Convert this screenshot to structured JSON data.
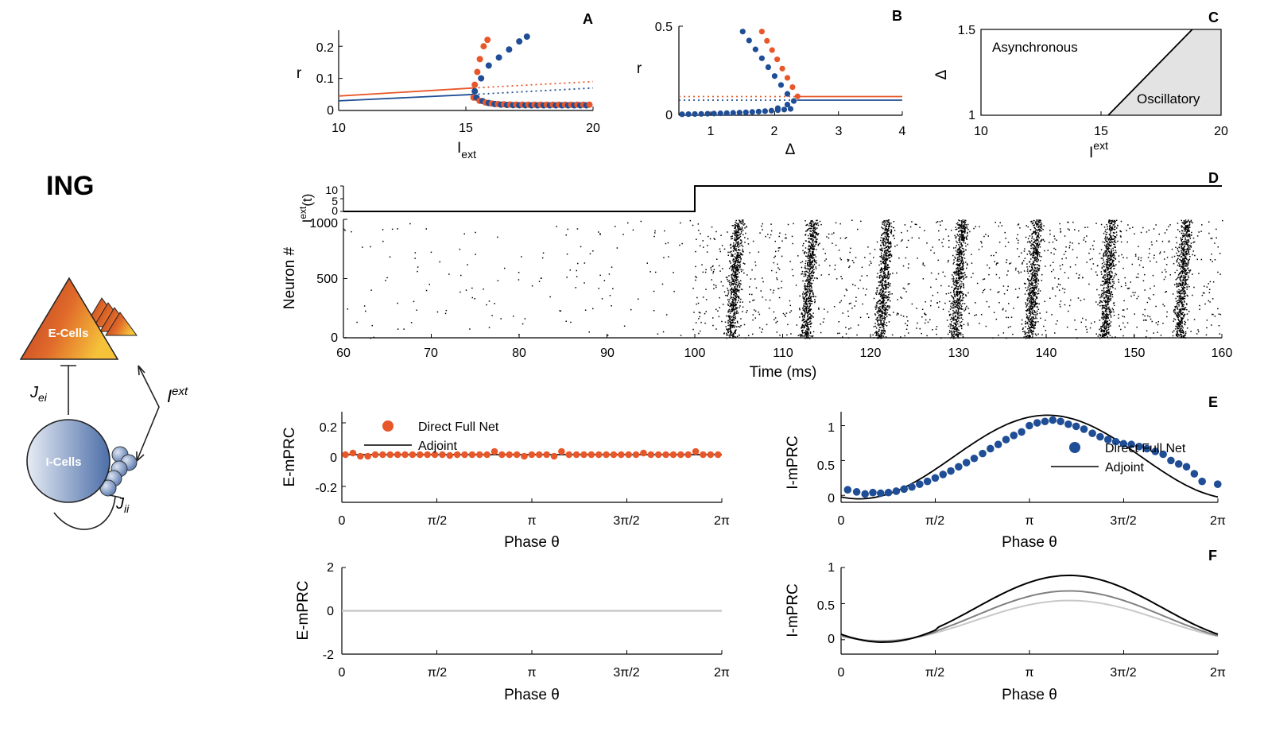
{
  "colors": {
    "orange": "#E8572A",
    "blue": "#1F4E96",
    "black": "#000000",
    "gray_mid": "#808080",
    "gray_light": "#C8C8C8",
    "region": "#E3E3E3"
  },
  "left": {
    "title": "ING",
    "e_cells_label": "E-Cells",
    "i_cells_label": "I-Cells",
    "jei": "J",
    "jei_sub": "ei",
    "jii": "J",
    "jii_sub": "ii",
    "iext": "I",
    "iext_sup": "ext"
  },
  "chart_data": [
    {
      "id": "A",
      "type": "line",
      "panel_label": "A",
      "xlabel": "I",
      "xlabel_sub": "ext",
      "ylabel": "r",
      "xlim": [
        10,
        20
      ],
      "ylim": [
        0,
        0.25
      ],
      "xticks": [
        "10",
        "15",
        "20"
      ],
      "yticks": [
        "0",
        "0.1",
        "0.2"
      ],
      "series": [
        {
          "name": "orange stable",
          "style": "solid",
          "color": "orange",
          "x": [
            10,
            15.3
          ],
          "y": [
            0.045,
            0.07
          ]
        },
        {
          "name": "orange unstable",
          "style": "dotted",
          "color": "orange",
          "x": [
            15.3,
            20
          ],
          "y": [
            0.07,
            0.09
          ]
        },
        {
          "name": "blue stable",
          "style": "solid",
          "color": "blue",
          "x": [
            10,
            15.3
          ],
          "y": [
            0.03,
            0.05
          ]
        },
        {
          "name": "blue unstable",
          "style": "dotted",
          "color": "blue",
          "x": [
            15.3,
            20
          ],
          "y": [
            0.05,
            0.07
          ]
        }
      ]
    },
    {
      "id": "B",
      "type": "line",
      "panel_label": "B",
      "xlabel": "Δ",
      "ylabel": "r",
      "xlim": [
        0.5,
        4
      ],
      "ylim": [
        0,
        0.5
      ],
      "xticks": [
        "1",
        "2",
        "3",
        "4"
      ],
      "yticks": [
        "0",
        "0.5"
      ],
      "series": [
        {
          "name": "orange stable",
          "style": "solid",
          "color": "orange",
          "x": [
            2.35,
            4
          ],
          "y": [
            0.105,
            0.105
          ]
        },
        {
          "name": "orange unstable",
          "style": "dotted",
          "color": "orange",
          "x": [
            0.5,
            2.35
          ],
          "y": [
            0.105,
            0.105
          ]
        },
        {
          "name": "blue stable",
          "style": "solid",
          "color": "blue",
          "x": [
            2.35,
            4
          ],
          "y": [
            0.085,
            0.085
          ]
        },
        {
          "name": "blue unstable",
          "style": "dotted",
          "color": "blue",
          "x": [
            0.5,
            2.35
          ],
          "y": [
            0.085,
            0.085
          ]
        }
      ]
    },
    {
      "id": "C",
      "type": "area",
      "panel_label": "C",
      "xlabel": "I",
      "xlabel_sup": "ext",
      "ylabel": "Δ",
      "xlim": [
        10,
        20
      ],
      "ylim": [
        1,
        1.5
      ],
      "xticks": [
        "10",
        "15",
        "20"
      ],
      "yticks": [
        "1",
        "1.5"
      ],
      "boundary": {
        "x": [
          15.3,
          18.8
        ],
        "y": [
          1,
          1.5
        ]
      },
      "region_labels": [
        "Asynchronous",
        "Oscillatory"
      ]
    },
    {
      "id": "D",
      "type": "scatter",
      "panel_label": "D",
      "xlabel": "Time (ms)",
      "ylabel": "Neuron #",
      "top_ylabel": "I",
      "top_ylabel_sup": "ext",
      "top_ylabel_tail": "(t)",
      "xlim": [
        60,
        160
      ],
      "ylim": [
        0,
        1000
      ],
      "xticks": [
        "60",
        "70",
        "80",
        "90",
        "100",
        "110",
        "120",
        "130",
        "140",
        "150",
        "160"
      ],
      "yticks": [
        "0",
        "500",
        "1000"
      ],
      "top_yticks": [
        "0",
        "5",
        "10"
      ],
      "input_step": {
        "t": [
          60,
          100,
          100,
          160
        ],
        "value": [
          0,
          0,
          10,
          10
        ]
      },
      "burst_times": [
        104.5,
        113,
        121.5,
        130,
        138.5,
        147,
        155.5
      ]
    },
    {
      "id": "E-left",
      "type": "scatter",
      "panel_label": "",
      "xlabel": "Phase θ",
      "ylabel": "E-mPRC",
      "xlim": [
        0,
        6.2832
      ],
      "ylim": [
        -0.3,
        0.27
      ],
      "xticks": [
        "0",
        "π/2",
        "π",
        "3π/2",
        "2π"
      ],
      "yticks": [
        "-0.2",
        "0",
        "0.2"
      ],
      "legend": [
        "Direct Full Net",
        "Adjoint"
      ],
      "series": [
        {
          "name": "Direct Full Net",
          "color": "orange",
          "y": [
            0,
            0.01,
            -0.01,
            -0.01,
            0,
            0,
            0,
            0,
            0,
            0,
            0,
            0,
            0,
            0,
            -0.005,
            0,
            0,
            0,
            0,
            0,
            0.02,
            0,
            0,
            0,
            -0.01,
            0,
            0,
            0,
            -0.01,
            0.02,
            0,
            0,
            0,
            0,
            0,
            0,
            0,
            0,
            0,
            0,
            0.01,
            0,
            0,
            0,
            0,
            0,
            0,
            0.02,
            0,
            0,
            0
          ]
        },
        {
          "name": "Adjoint",
          "color": "black",
          "x": [
            0,
            6.2832
          ],
          "y": [
            0,
            0
          ]
        }
      ]
    },
    {
      "id": "E-right",
      "type": "scatter",
      "panel_label": "E",
      "xlabel": "Phase θ",
      "ylabel": "I-mPRC",
      "xlim": [
        0,
        6.2832
      ],
      "ylim": [
        -0.1,
        1.2
      ],
      "xticks": [
        "0",
        "π/2",
        "π",
        "3π/2",
        "2π"
      ],
      "yticks": [
        "0",
        "0.5",
        "1"
      ],
      "legend": [
        "Direct Full Net",
        "Adjoint"
      ],
      "series": [
        {
          "name": "Direct Full Net",
          "color": "blue",
          "x": [
            0.11,
            0.26,
            0.4,
            0.53,
            0.66,
            0.79,
            0.92,
            1.05,
            1.18,
            1.31,
            1.44,
            1.57,
            1.7,
            1.83,
            1.96,
            2.09,
            2.22,
            2.36,
            2.49,
            2.62,
            2.75,
            2.88,
            3.01,
            3.14,
            3.27,
            3.4,
            3.53,
            3.66,
            3.79,
            3.92,
            4.05,
            4.19,
            4.32,
            4.45,
            4.58,
            4.71,
            4.84,
            4.97,
            5.1,
            5.24,
            5.37,
            5.5,
            5.63,
            5.76,
            5.89,
            6.02,
            6.28
          ],
          "y": [
            0.08,
            0.05,
            0.02,
            0.04,
            0.03,
            0.04,
            0.06,
            0.09,
            0.12,
            0.16,
            0.2,
            0.25,
            0.3,
            0.35,
            0.41,
            0.47,
            0.53,
            0.6,
            0.67,
            0.73,
            0.8,
            0.86,
            0.91,
            1.0,
            1.04,
            1.06,
            1.08,
            1.06,
            1.02,
            0.99,
            0.95,
            0.89,
            0.84,
            0.8,
            0.77,
            0.74,
            0.73,
            0.7,
            0.67,
            0.63,
            0.59,
            0.5,
            0.45,
            0.41,
            0.31,
            0.2,
            0.16
          ]
        },
        {
          "name": "Adjoint",
          "color": "black",
          "func": "0.60*(1-cos(θ-0.3))"
        }
      ]
    },
    {
      "id": "F-left",
      "type": "line",
      "panel_label": "",
      "xlabel": "Phase θ",
      "ylabel": "E-mPRC",
      "xlim": [
        0,
        6.2832
      ],
      "ylim": [
        -2,
        2
      ],
      "xticks": [
        "0",
        "π/2",
        "π",
        "3π/2",
        "2π"
      ],
      "yticks": [
        "-2",
        "0",
        "2"
      ],
      "series": [
        {
          "name": "zero",
          "color": "gray_light",
          "x": [
            0,
            6.2832
          ],
          "y": [
            0,
            0
          ]
        }
      ]
    },
    {
      "id": "F-right",
      "type": "line",
      "panel_label": "F",
      "xlabel": "Phase θ",
      "ylabel": "I-mPRC",
      "xlim": [
        0,
        6.2832
      ],
      "ylim": [
        -0.2,
        1.0
      ],
      "xticks": [
        "0",
        "π/2",
        "π",
        "3π/2",
        "2π"
      ],
      "yticks": [
        "0",
        "0.5",
        "1"
      ],
      "series": [
        {
          "name": "high",
          "color": "black",
          "amplitude": 0.87
        },
        {
          "name": "mid",
          "color": "gray_mid",
          "amplitude": 0.66
        },
        {
          "name": "low",
          "color": "gray_light",
          "amplitude": 0.53
        }
      ]
    }
  ]
}
